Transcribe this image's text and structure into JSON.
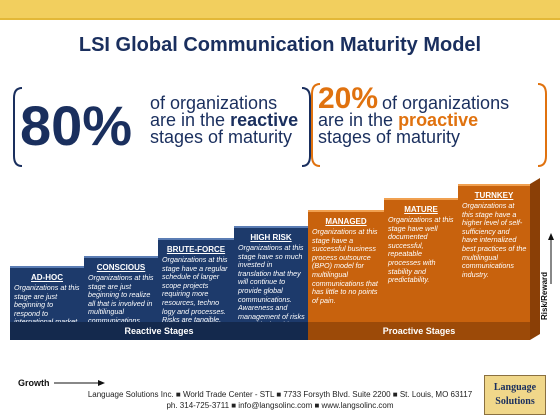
{
  "title": "LSI Global Communication Maturity Model",
  "reactive_stat": {
    "percent": "80%",
    "line1": "of organizations",
    "line2_pre": "are in the ",
    "line2_emph": "reactive",
    "line3": "stages of maturity"
  },
  "proactive_stat": {
    "percent": "20%",
    "line1": "of organizations",
    "line2_pre": "are in the ",
    "line2_emph": "proactive",
    "line3": "stages of maturity"
  },
  "stages": [
    {
      "name": "AD-HOC",
      "description": "Organizations at this stage are just beginning to respond to international market demands."
    },
    {
      "name": "CONSCIOUS",
      "description": "Organizations at this stage are just beginning to realize all that is involved in multilingual communications."
    },
    {
      "name": "BRUTE-FORCE",
      "description": "Organizations at this stage have a regular schedule of larger scope projects requiring more resources, techno logy and processes. Risks are tangible."
    },
    {
      "name": "HIGH RISK",
      "description": "Organizations at this stage have so much invested in translation that they will continue to provide global communications. Awareness and management of risks are critical at this stage."
    },
    {
      "name": "MANAGED",
      "description": "Organizations at this stage have a successful business process outsource (BPO) model for multilingual communications that has little to no points of pain."
    },
    {
      "name": "MATURE",
      "description": "Organizations at this stage have well documented successful, repeatable processes with stability and predictability."
    },
    {
      "name": "TURNKEY",
      "description": "Organizations at this stage have a higher level of self-sufficiency and have internalized best practices of the multilingual communications industry."
    }
  ],
  "base_labels": {
    "reactive": "Reactive Stages",
    "proactive": "Proactive Stages"
  },
  "axis": {
    "x_label": "Growth",
    "y_label": "Risk/Reward"
  },
  "footer": {
    "line1": "Language Solutions Inc. ■ World Trade Center - STL ■ 7733 Forsyth Blvd. Suite 2200 ■ St. Louis, MO 63117",
    "line2": "ph. 314-725-3711 ■ info@langsolinc.com ■ www.langsolinc.com"
  },
  "logo": {
    "line1": "Language",
    "line2": "Solutions"
  },
  "colors": {
    "navy": "#1d3a6b",
    "orange": "#c8620d",
    "gold": "#f2cf5e"
  }
}
